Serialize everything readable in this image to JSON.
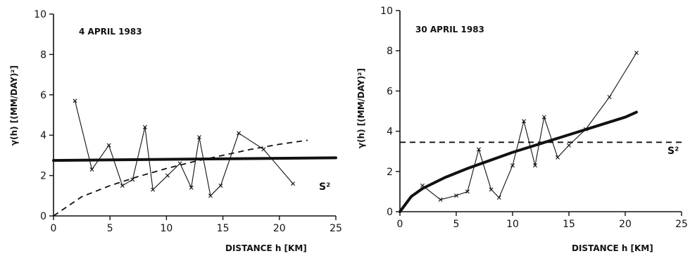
{
  "chart_data": [
    {
      "type": "line",
      "title": "4 APRIL 1983",
      "xlabel": "DISTANCE h  [KM]",
      "ylabel": "γ(h)  [(MM/DAY)²]",
      "xlim": [
        0,
        25
      ],
      "ylim": [
        0,
        10
      ],
      "xticks": [
        0,
        5,
        10,
        15,
        20,
        25
      ],
      "yticks": [
        0,
        2,
        4,
        6,
        8,
        10
      ],
      "grid": false,
      "annotations": [
        "S²"
      ],
      "series": [
        {
          "style": "thin-markers",
          "x": [
            1.9,
            3.4,
            4.9,
            6.1,
            7.0,
            8.1,
            8.8,
            10.1,
            11.2,
            12.2,
            12.9,
            13.9,
            14.8,
            16.4,
            18.6,
            21.2
          ],
          "y": [
            5.7,
            2.3,
            3.5,
            1.5,
            1.8,
            4.4,
            1.3,
            2.0,
            2.6,
            1.4,
            3.9,
            1.0,
            1.5,
            4.1,
            3.3,
            1.6
          ]
        },
        {
          "style": "bold",
          "x": [
            0,
            25
          ],
          "y": [
            2.75,
            2.88
          ]
        },
        {
          "style": "dashed",
          "x": [
            0,
            2.5,
            5,
            7.5,
            10,
            12.5,
            15,
            17.5,
            20,
            22.5
          ],
          "y": [
            0,
            0.95,
            1.5,
            1.95,
            2.35,
            2.7,
            3.0,
            3.3,
            3.55,
            3.75
          ]
        }
      ]
    },
    {
      "type": "line",
      "title": "30 APRIL 1983",
      "xlabel": "DISTANCE h  [KM]",
      "ylabel": "γ(h)  [(MM/DAY)²]",
      "xlim": [
        0,
        25
      ],
      "ylim": [
        0,
        10
      ],
      "xticks": [
        0,
        5,
        10,
        15,
        20,
        25
      ],
      "yticks": [
        0,
        2,
        4,
        6,
        8,
        10
      ],
      "grid": false,
      "annotations": [
        "S²"
      ],
      "series": [
        {
          "style": "thin-markers",
          "x": [
            2.0,
            3.6,
            5.0,
            6.0,
            7.0,
            8.1,
            8.8,
            10.0,
            11.0,
            12.0,
            12.8,
            14.0,
            15.0,
            16.5,
            18.6,
            21.0
          ],
          "y": [
            1.3,
            0.6,
            0.8,
            1.0,
            3.1,
            1.1,
            0.7,
            2.3,
            4.5,
            2.3,
            4.7,
            2.7,
            3.3,
            4.1,
            5.7,
            7.9
          ]
        },
        {
          "style": "bold",
          "x": [
            0,
            1,
            2,
            4,
            6,
            8,
            10,
            12,
            14,
            16,
            18,
            20,
            21
          ],
          "y": [
            0,
            0.75,
            1.15,
            1.7,
            2.15,
            2.55,
            2.95,
            3.3,
            3.65,
            4.0,
            4.35,
            4.7,
            4.95
          ]
        },
        {
          "style": "dashed",
          "x": [
            0,
            25
          ],
          "y": [
            3.45,
            3.45
          ]
        }
      ]
    }
  ]
}
